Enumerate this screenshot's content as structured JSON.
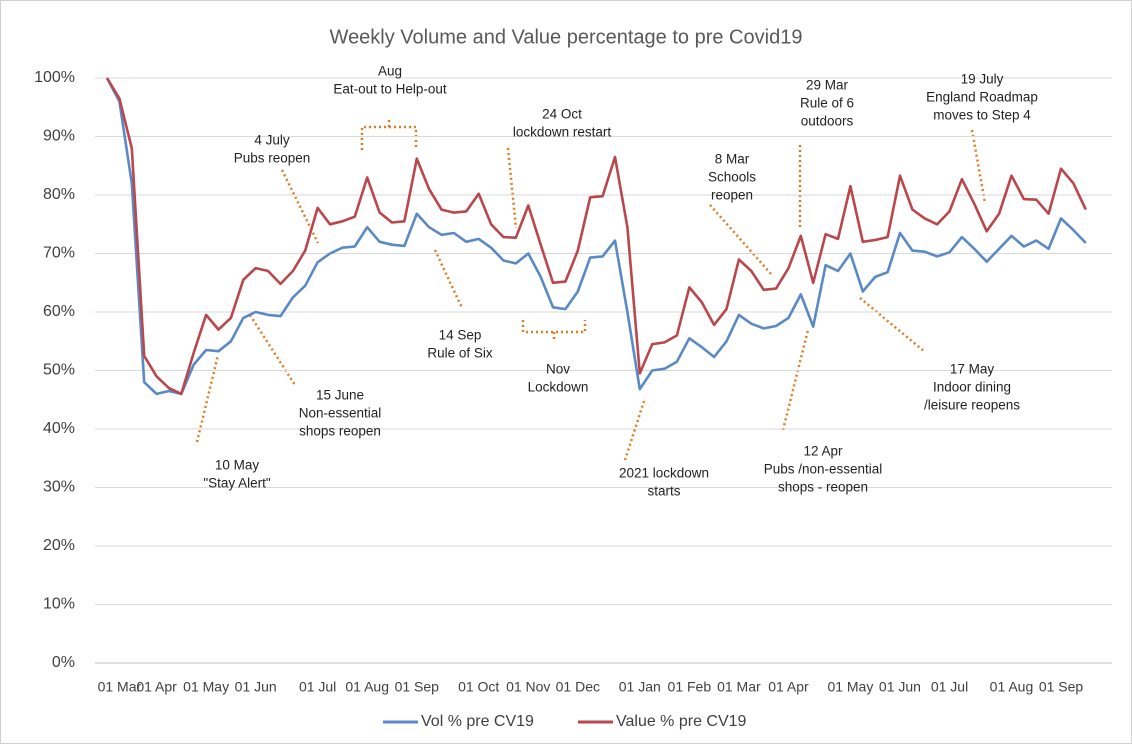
{
  "chart_data": {
    "type": "line",
    "title": "Weekly Volume and Value percentage to pre Covid19",
    "categories": [
      null,
      "01 Mar",
      null,
      null,
      "01 Apr",
      null,
      null,
      null,
      "01 May",
      null,
      null,
      null,
      "01 Jun",
      null,
      null,
      null,
      null,
      "01 Jul",
      null,
      null,
      null,
      "01 Aug",
      null,
      null,
      null,
      "01 Sep",
      null,
      null,
      null,
      null,
      "01 Oct",
      null,
      null,
      null,
      "01 Nov",
      null,
      null,
      null,
      "01 Dec",
      null,
      null,
      null,
      null,
      "01 Jan",
      null,
      null,
      null,
      "01 Feb",
      null,
      null,
      null,
      "01 Mar",
      null,
      null,
      null,
      "01 Apr",
      null,
      null,
      null,
      null,
      "01 May",
      null,
      null,
      null,
      "01 Jun",
      null,
      null,
      null,
      "01 Jul",
      null,
      null,
      null,
      null,
      "01 Aug",
      null,
      null,
      null,
      "01 Sep",
      null,
      null
    ],
    "series": [
      {
        "name": "Vol % pre CV19",
        "color": "#5a8ac6",
        "values": [
          100,
          96,
          82,
          48,
          46,
          46.5,
          46,
          51,
          53.5,
          53.3,
          55,
          59,
          60,
          59.5,
          59.3,
          62.5,
          64.5,
          68.5,
          70,
          71,
          71.2,
          74.5,
          72,
          71.5,
          71.3,
          76.8,
          74.5,
          73.2,
          73.5,
          72,
          72.5,
          71,
          68.8,
          68.3,
          70,
          66,
          60.8,
          60.5,
          63.5,
          69.3,
          69.5,
          72.2,
          60,
          46.8,
          50,
          50.3,
          51.5,
          55.5,
          54,
          52.3,
          55,
          59.5,
          58,
          57.2,
          57.6,
          59,
          63,
          57.5,
          68,
          67,
          70,
          63.5,
          66,
          66.8,
          73.5,
          70.5,
          70.3,
          69.5,
          70.2,
          72.8,
          70.8,
          68.6,
          70.8,
          73,
          71.2,
          72.2,
          70.8,
          76,
          74,
          71.8
        ]
      },
      {
        "name": "Value % pre CV19",
        "color": "#b9474c",
        "values": [
          100,
          96.5,
          88,
          52.5,
          49,
          47,
          46,
          53,
          59.5,
          57,
          59,
          65.5,
          67.5,
          67,
          64.8,
          67,
          70.5,
          77.8,
          75,
          75.5,
          76.3,
          83,
          77,
          75.3,
          75.5,
          86.2,
          81,
          77.5,
          77,
          77.2,
          80.2,
          75,
          72.8,
          72.7,
          78.2,
          71.5,
          65,
          65.2,
          70.5,
          79.6,
          79.8,
          86.5,
          74.5,
          49.5,
          54.5,
          54.8,
          56,
          64.2,
          61.7,
          57.8,
          60.5,
          69,
          67,
          63.8,
          64,
          67.5,
          73,
          65,
          73.3,
          72.5,
          81.5,
          72,
          72.3,
          72.8,
          83.3,
          77.5,
          76,
          75,
          77.2,
          82.7,
          78.5,
          73.8,
          76.8,
          83.3,
          79.3,
          79.2,
          76.8,
          84.5,
          82,
          77.5
        ]
      }
    ],
    "ylim": [
      0,
      100
    ],
    "yticks": [
      {
        "value": 0,
        "label": "0%"
      },
      {
        "value": 10,
        "label": "10%"
      },
      {
        "value": 20,
        "label": "20%"
      },
      {
        "value": 30,
        "label": "30%"
      },
      {
        "value": 40,
        "label": "40%"
      },
      {
        "value": 50,
        "label": "50%"
      },
      {
        "value": 60,
        "label": "60%"
      },
      {
        "value": 70,
        "label": "70%"
      },
      {
        "value": 80,
        "label": "80%"
      },
      {
        "value": 90,
        "label": "90%"
      },
      {
        "value": 100,
        "label": "100%"
      }
    ],
    "grid": true,
    "legend": "bottom",
    "annotations": [
      [
        "Aug",
        "Eat-out to Help-out"
      ],
      [
        "4 July",
        "Pubs reopen"
      ],
      [
        "24 Oct",
        "lockdown restart"
      ],
      [
        "29 Mar",
        "Rule of 6",
        "outdoors"
      ],
      [
        "19 July",
        "England Roadmap",
        "moves to Step 4"
      ],
      [
        "8 Mar",
        "Schools",
        "reopen"
      ],
      [
        "14 Sep",
        "Rule of Six"
      ],
      [
        "Nov",
        "Lockdown"
      ],
      [
        "15 June",
        "Non-essential",
        "shops reopen"
      ],
      [
        "17 May",
        "Indoor dining",
        "/leisure reopens"
      ],
      [
        "10 May",
        "\"Stay Alert\""
      ],
      [
        "2021 lockdown",
        "starts"
      ],
      [
        "12 Apr",
        "Pubs /non-essential",
        "shops - reopen"
      ]
    ]
  }
}
